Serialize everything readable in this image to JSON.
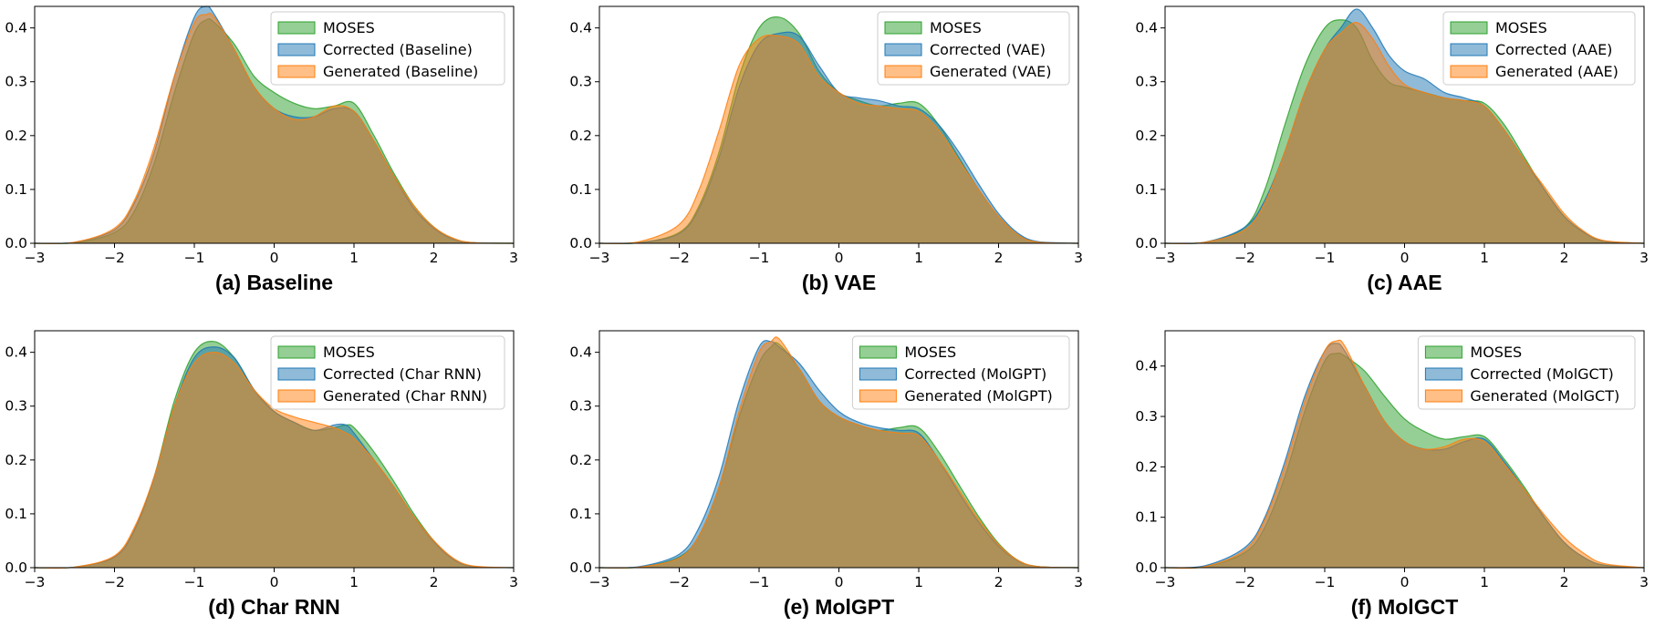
{
  "chart_data": [
    {
      "type": "area",
      "caption": "(a) Baseline",
      "xlim": [
        -3,
        3
      ],
      "ylim": [
        0,
        0.44
      ],
      "xticks": [
        -3,
        -2,
        -1,
        0,
        1,
        2,
        3
      ],
      "xtick_labels": [
        "−3",
        "−2",
        "−1",
        "0",
        "1",
        "2",
        "3"
      ],
      "yticks": [
        0.0,
        0.1,
        0.2,
        0.3,
        0.4
      ],
      "ytick_labels": [
        "0.0",
        "0.1",
        "0.2",
        "0.3",
        "0.4"
      ],
      "legend_position": "top-right",
      "x": [
        -3,
        -2.5,
        -2,
        -1.75,
        -1.5,
        -1.25,
        -1,
        -0.85,
        -0.75,
        -0.5,
        -0.25,
        0,
        0.25,
        0.5,
        0.75,
        1,
        1.25,
        1.5,
        1.75,
        2,
        2.25,
        2.5,
        3
      ],
      "series": [
        {
          "name": "MOSES",
          "color": "#2ca02c",
          "values": [
            0,
            0.001,
            0.02,
            0.06,
            0.15,
            0.28,
            0.39,
            0.415,
            0.41,
            0.37,
            0.31,
            0.28,
            0.26,
            0.25,
            0.255,
            0.26,
            0.2,
            0.13,
            0.07,
            0.03,
            0.008,
            0.001,
            0
          ]
        },
        {
          "name": "Corrected (Baseline)",
          "color": "#1f77b4",
          "values": [
            0,
            0.002,
            0.025,
            0.075,
            0.17,
            0.31,
            0.42,
            0.44,
            0.425,
            0.36,
            0.29,
            0.25,
            0.235,
            0.235,
            0.25,
            0.245,
            0.19,
            0.125,
            0.065,
            0.028,
            0.007,
            0.001,
            0
          ]
        },
        {
          "name": "Generated (Baseline)",
          "color": "#ff7f0e",
          "values": [
            0,
            0.002,
            0.028,
            0.08,
            0.18,
            0.31,
            0.41,
            0.425,
            0.42,
            0.36,
            0.29,
            0.25,
            0.23,
            0.235,
            0.255,
            0.245,
            0.19,
            0.125,
            0.07,
            0.03,
            0.009,
            0.001,
            0
          ]
        }
      ]
    },
    {
      "type": "area",
      "caption": "(b) VAE",
      "xlim": [
        -3,
        3
      ],
      "ylim": [
        0,
        0.44
      ],
      "xticks": [
        -3,
        -2,
        -1,
        0,
        1,
        2,
        3
      ],
      "xtick_labels": [
        "−3",
        "−2",
        "−1",
        "0",
        "1",
        "2",
        "3"
      ],
      "yticks": [
        0.0,
        0.1,
        0.2,
        0.3,
        0.4
      ],
      "ytick_labels": [
        "0.0",
        "0.1",
        "0.2",
        "0.3",
        "0.4"
      ],
      "legend_position": "top-right",
      "x": [
        -3,
        -2.5,
        -2,
        -1.75,
        -1.5,
        -1.25,
        -1,
        -0.75,
        -0.5,
        -0.25,
        0,
        0.25,
        0.5,
        0.75,
        1,
        1.25,
        1.5,
        1.75,
        2,
        2.25,
        2.5,
        3
      ],
      "series": [
        {
          "name": "MOSES",
          "color": "#2ca02c",
          "values": [
            0,
            0.001,
            0.02,
            0.07,
            0.17,
            0.31,
            0.4,
            0.42,
            0.39,
            0.32,
            0.28,
            0.265,
            0.255,
            0.26,
            0.26,
            0.22,
            0.16,
            0.1,
            0.05,
            0.015,
            0.002,
            0
          ]
        },
        {
          "name": "Corrected (VAE)",
          "color": "#1f77b4",
          "values": [
            0,
            0.001,
            0.018,
            0.065,
            0.16,
            0.29,
            0.37,
            0.39,
            0.385,
            0.33,
            0.28,
            0.27,
            0.265,
            0.255,
            0.25,
            0.22,
            0.17,
            0.11,
            0.055,
            0.018,
            0.003,
            0
          ]
        },
        {
          "name": "Generated (VAE)",
          "color": "#ff7f0e",
          "values": [
            0,
            0.003,
            0.035,
            0.1,
            0.21,
            0.33,
            0.38,
            0.385,
            0.37,
            0.31,
            0.28,
            0.26,
            0.255,
            0.25,
            0.245,
            0.21,
            0.155,
            0.1,
            0.05,
            0.015,
            0.002,
            0
          ]
        }
      ]
    },
    {
      "type": "area",
      "caption": "(c) AAE",
      "xlim": [
        -3,
        3
      ],
      "ylim": [
        0,
        0.44
      ],
      "xticks": [
        -3,
        -2,
        -1,
        0,
        1,
        2,
        3
      ],
      "xtick_labels": [
        "−3",
        "−2",
        "−1",
        "0",
        "1",
        "2",
        "3"
      ],
      "yticks": [
        0.0,
        0.1,
        0.2,
        0.3,
        0.4
      ],
      "ytick_labels": [
        "0.0",
        "0.1",
        "0.2",
        "0.3",
        "0.4"
      ],
      "legend_position": "top-right",
      "x": [
        -3,
        -2.5,
        -2,
        -1.75,
        -1.5,
        -1.25,
        -1,
        -0.8,
        -0.6,
        -0.4,
        -0.2,
        0,
        0.25,
        0.5,
        0.75,
        1,
        1.25,
        1.5,
        1.75,
        2,
        2.25,
        2.5,
        3
      ],
      "series": [
        {
          "name": "MOSES",
          "color": "#2ca02c",
          "values": [
            0,
            0.002,
            0.03,
            0.1,
            0.22,
            0.33,
            0.4,
            0.415,
            0.4,
            0.34,
            0.3,
            0.29,
            0.28,
            0.27,
            0.265,
            0.26,
            0.22,
            0.16,
            0.1,
            0.05,
            0.02,
            0.004,
            0
          ]
        },
        {
          "name": "Corrected (AAE)",
          "color": "#1f77b4",
          "values": [
            0,
            0.002,
            0.03,
            0.08,
            0.17,
            0.28,
            0.36,
            0.4,
            0.435,
            0.4,
            0.35,
            0.32,
            0.305,
            0.28,
            0.27,
            0.255,
            0.21,
            0.155,
            0.1,
            0.05,
            0.02,
            0.004,
            0
          ]
        },
        {
          "name": "Generated (AAE)",
          "color": "#ff7f0e",
          "values": [
            0,
            0.002,
            0.025,
            0.075,
            0.17,
            0.28,
            0.36,
            0.39,
            0.41,
            0.38,
            0.33,
            0.295,
            0.28,
            0.27,
            0.265,
            0.255,
            0.21,
            0.155,
            0.105,
            0.055,
            0.022,
            0.005,
            0
          ]
        }
      ]
    },
    {
      "type": "area",
      "caption": "(d) Char RNN",
      "xlim": [
        -3,
        3
      ],
      "ylim": [
        0,
        0.44
      ],
      "xticks": [
        -3,
        -2,
        -1,
        0,
        1,
        2,
        3
      ],
      "xtick_labels": [
        "−3",
        "−2",
        "−1",
        "0",
        "1",
        "2",
        "3"
      ],
      "yticks": [
        0.0,
        0.1,
        0.2,
        0.3,
        0.4
      ],
      "ytick_labels": [
        "0.0",
        "0.1",
        "0.2",
        "0.3",
        "0.4"
      ],
      "legend_position": "top-right",
      "x": [
        -3,
        -2.5,
        -2,
        -1.75,
        -1.5,
        -1.25,
        -1,
        -0.75,
        -0.5,
        -0.25,
        0,
        0.25,
        0.5,
        0.75,
        0.9,
        1,
        1.25,
        1.5,
        1.75,
        2,
        2.25,
        2.5,
        3
      ],
      "series": [
        {
          "name": "MOSES",
          "color": "#2ca02c",
          "values": [
            0,
            0.001,
            0.02,
            0.07,
            0.17,
            0.31,
            0.4,
            0.42,
            0.39,
            0.33,
            0.29,
            0.27,
            0.255,
            0.26,
            0.265,
            0.26,
            0.215,
            0.16,
            0.1,
            0.05,
            0.015,
            0.002,
            0
          ]
        },
        {
          "name": "Corrected (Char RNN)",
          "color": "#1f77b4",
          "values": [
            0,
            0.001,
            0.02,
            0.07,
            0.17,
            0.3,
            0.39,
            0.41,
            0.39,
            0.33,
            0.29,
            0.27,
            0.255,
            0.265,
            0.265,
            0.25,
            0.2,
            0.15,
            0.095,
            0.048,
            0.015,
            0.002,
            0
          ]
        },
        {
          "name": "Generated (Char RNN)",
          "color": "#ff7f0e",
          "values": [
            0,
            0.001,
            0.022,
            0.075,
            0.17,
            0.3,
            0.38,
            0.4,
            0.38,
            0.33,
            0.295,
            0.28,
            0.27,
            0.26,
            0.25,
            0.24,
            0.2,
            0.15,
            0.095,
            0.05,
            0.017,
            0.003,
            0
          ]
        }
      ]
    },
    {
      "type": "area",
      "caption": "(e) MolGPT",
      "xlim": [
        -3,
        3
      ],
      "ylim": [
        0,
        0.44
      ],
      "xticks": [
        -3,
        -2,
        -1,
        0,
        1,
        2,
        3
      ],
      "xtick_labels": [
        "−3",
        "−2",
        "−1",
        "0",
        "1",
        "2",
        "3"
      ],
      "yticks": [
        0.0,
        0.1,
        0.2,
        0.3,
        0.4
      ],
      "ytick_labels": [
        "0.0",
        "0.1",
        "0.2",
        "0.3",
        "0.4"
      ],
      "legend_position": "top-right",
      "x": [
        -3,
        -2.5,
        -2,
        -1.75,
        -1.5,
        -1.25,
        -1,
        -0.85,
        -0.75,
        -0.5,
        -0.25,
        0,
        0.25,
        0.5,
        0.75,
        1,
        1.25,
        1.5,
        1.75,
        2,
        2.25,
        2.5,
        3
      ],
      "series": [
        {
          "name": "MOSES",
          "color": "#2ca02c",
          "values": [
            0,
            0.001,
            0.02,
            0.06,
            0.15,
            0.28,
            0.38,
            0.41,
            0.415,
            0.37,
            0.31,
            0.28,
            0.265,
            0.255,
            0.26,
            0.26,
            0.215,
            0.155,
            0.095,
            0.045,
            0.013,
            0.002,
            0
          ]
        },
        {
          "name": "Corrected (MolGPT)",
          "color": "#1f77b4",
          "values": [
            0,
            0.002,
            0.025,
            0.075,
            0.17,
            0.31,
            0.41,
            0.42,
            0.41,
            0.38,
            0.33,
            0.29,
            0.27,
            0.26,
            0.255,
            0.25,
            0.2,
            0.14,
            0.085,
            0.04,
            0.012,
            0.002,
            0
          ]
        },
        {
          "name": "Generated (MolGPT)",
          "color": "#ff7f0e",
          "values": [
            0,
            0.001,
            0.018,
            0.06,
            0.15,
            0.29,
            0.4,
            0.42,
            0.425,
            0.37,
            0.31,
            0.28,
            0.265,
            0.255,
            0.25,
            0.245,
            0.2,
            0.145,
            0.09,
            0.043,
            0.013,
            0.002,
            0
          ]
        }
      ]
    },
    {
      "type": "area",
      "caption": "(f) MolGCT",
      "xlim": [
        -3,
        3
      ],
      "ylim": [
        0,
        0.47
      ],
      "xticks": [
        -3,
        -2,
        -1,
        0,
        1,
        2,
        3
      ],
      "xtick_labels": [
        "−3",
        "−2",
        "−1",
        "0",
        "1",
        "2",
        "3"
      ],
      "yticks": [
        0.0,
        0.1,
        0.2,
        0.3,
        0.4
      ],
      "ytick_labels": [
        "0.0",
        "0.1",
        "0.2",
        "0.3",
        "0.4"
      ],
      "legend_position": "top-right",
      "x": [
        -3,
        -2.5,
        -2,
        -1.75,
        -1.5,
        -1.25,
        -1,
        -0.85,
        -0.75,
        -0.5,
        -0.25,
        0,
        0.25,
        0.5,
        0.75,
        1,
        1.25,
        1.5,
        1.75,
        2,
        2.25,
        2.5,
        3
      ],
      "series": [
        {
          "name": "MOSES",
          "color": "#2ca02c",
          "values": [
            0,
            0.002,
            0.03,
            0.08,
            0.18,
            0.31,
            0.41,
            0.425,
            0.42,
            0.39,
            0.34,
            0.295,
            0.27,
            0.255,
            0.26,
            0.26,
            0.215,
            0.16,
            0.1,
            0.05,
            0.02,
            0.005,
            0
          ]
        },
        {
          "name": "Corrected (MolGCT)",
          "color": "#1f77b4",
          "values": [
            0,
            0.004,
            0.04,
            0.1,
            0.21,
            0.34,
            0.43,
            0.445,
            0.43,
            0.36,
            0.29,
            0.25,
            0.235,
            0.235,
            0.25,
            0.255,
            0.21,
            0.155,
            0.1,
            0.05,
            0.02,
            0.005,
            0
          ]
        },
        {
          "name": "Generated (MolGCT)",
          "color": "#ff7f0e",
          "values": [
            0,
            0.002,
            0.035,
            0.095,
            0.2,
            0.33,
            0.43,
            0.45,
            0.44,
            0.36,
            0.29,
            0.25,
            0.235,
            0.24,
            0.255,
            0.25,
            0.205,
            0.155,
            0.105,
            0.06,
            0.028,
            0.008,
            0
          ]
        }
      ]
    }
  ]
}
